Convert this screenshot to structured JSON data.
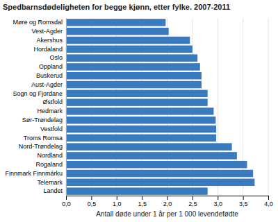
{
  "chart_data": {
    "type": "bar",
    "orientation": "horizontal",
    "title": "Spedbarnsdødeligheten for begge kjønn, etter fylke. 2007-2011",
    "xlabel": "Antall døde under 1 år per 1 000 levendefødte",
    "categories": [
      "Landet",
      "Telemark",
      "Finnmark Finnmárku",
      "Rogaland",
      "Nordland",
      "Nord-Trøndelag",
      "Troms Romsa",
      "Vestfold",
      "Sør-Trøndelag",
      "Hedmark",
      "Østfold",
      "Sogn og Fjordane",
      "Aust-Agder",
      "Buskerud",
      "Oppland",
      "Oslo",
      "Hordaland",
      "Akershus",
      "Vest-Agder",
      "Møre og Romsdal"
    ],
    "values": [
      2.8,
      3.73,
      3.7,
      3.58,
      3.38,
      3.28,
      2.97,
      2.97,
      2.96,
      2.92,
      2.8,
      2.8,
      2.68,
      2.68,
      2.65,
      2.6,
      2.5,
      2.45,
      2.03,
      1.97
    ],
    "color": "#3a7bbf",
    "xlim": [
      0,
      4.0
    ],
    "xticks": [
      {
        "value": 0.0,
        "label": "0,0"
      },
      {
        "value": 0.5,
        "label": "0,5"
      },
      {
        "value": 1.0,
        "label": "1,0"
      },
      {
        "value": 1.5,
        "label": "1,5"
      },
      {
        "value": 2.0,
        "label": "2,0"
      },
      {
        "value": 2.5,
        "label": "2,5"
      },
      {
        "value": 3.0,
        "label": "3,0"
      },
      {
        "value": 3.5,
        "label": "3,5"
      },
      {
        "value": 4.0,
        "label": "4,0"
      }
    ],
    "grid": true
  }
}
